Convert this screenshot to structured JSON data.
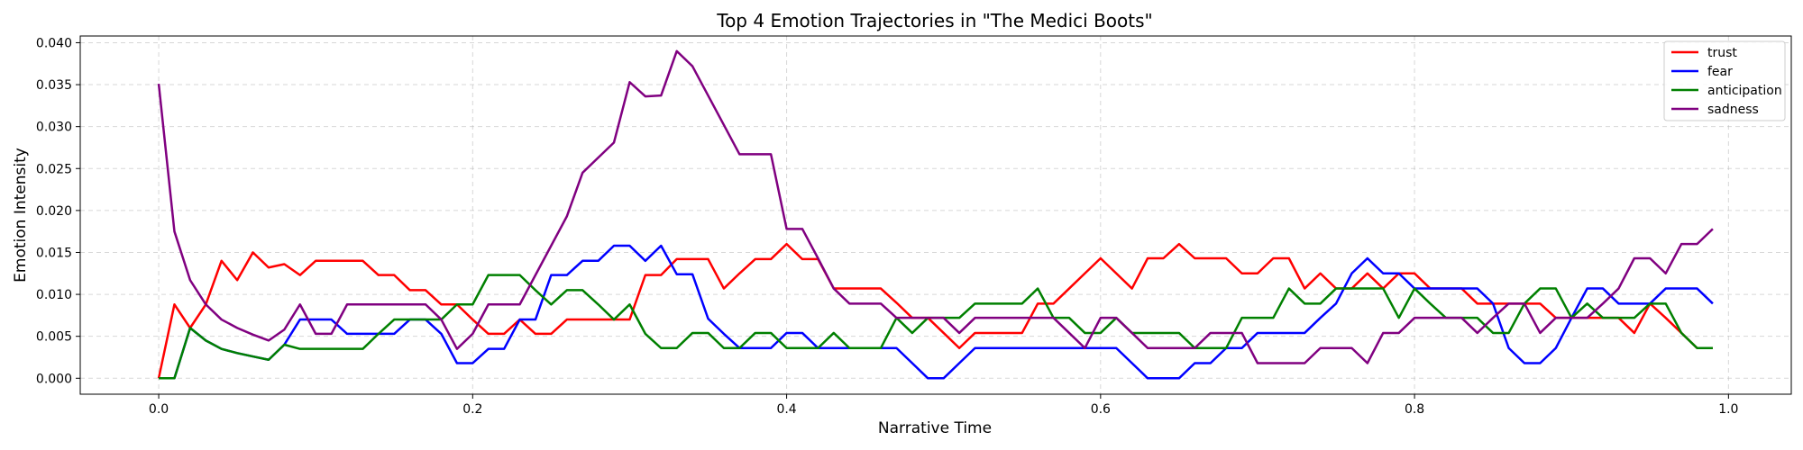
{
  "chart_data": {
    "type": "line",
    "title": "Top 4 Emotion Trajectories in \"The Medici Boots\"",
    "xlabel": "Narrative Time",
    "ylabel": "Emotion Intensity",
    "xlim": [
      -0.05,
      1.04
    ],
    "ylim": [
      -0.0019,
      0.0408
    ],
    "xticks": [
      "0.0",
      "0.2",
      "0.4",
      "0.6",
      "0.8",
      "1.0"
    ],
    "yticks": [
      "0.000",
      "0.005",
      "0.010",
      "0.015",
      "0.020",
      "0.025",
      "0.030",
      "0.035",
      "0.040"
    ],
    "grid": true,
    "legend_position": "top-right",
    "x": [
      0.0,
      0.01,
      0.02,
      0.03,
      0.04,
      0.05,
      0.06,
      0.07,
      0.08,
      0.09,
      0.1,
      0.11,
      0.12,
      0.13,
      0.14,
      0.15,
      0.16,
      0.17,
      0.18,
      0.19,
      0.2,
      0.21,
      0.22,
      0.23,
      0.24,
      0.25,
      0.26,
      0.27,
      0.28,
      0.29,
      0.3,
      0.31,
      0.32,
      0.33,
      0.34,
      0.35,
      0.36,
      0.37,
      0.38,
      0.39,
      0.4,
      0.41,
      0.42,
      0.43,
      0.44,
      0.45,
      0.46,
      0.47,
      0.48,
      0.49,
      0.5,
      0.51,
      0.52,
      0.53,
      0.54,
      0.55,
      0.56,
      0.57,
      0.58,
      0.59,
      0.6,
      0.61,
      0.62,
      0.63,
      0.64,
      0.65,
      0.66,
      0.67,
      0.68,
      0.69,
      0.7,
      0.71,
      0.72,
      0.73,
      0.74,
      0.75,
      0.76,
      0.77,
      0.78,
      0.79,
      0.8,
      0.81,
      0.82,
      0.83,
      0.84,
      0.85,
      0.86,
      0.87,
      0.88,
      0.89,
      0.9,
      0.91,
      0.92,
      0.93,
      0.94,
      0.95,
      0.96,
      0.97,
      0.98,
      0.99
    ],
    "series": [
      {
        "name": "trust",
        "color": "#ff0000",
        "values": [
          0.0,
          0.0088,
          0.006,
          0.0088,
          0.014,
          0.0117,
          0.015,
          0.0132,
          0.0136,
          0.0123,
          0.014,
          0.014,
          0.014,
          0.014,
          0.0123,
          0.0123,
          0.0105,
          0.0105,
          0.0088,
          0.0088,
          0.007,
          0.0053,
          0.0053,
          0.007,
          0.0053,
          0.0053,
          0.007,
          0.007,
          0.007,
          0.007,
          0.007,
          0.0123,
          0.0123,
          0.0142,
          0.0142,
          0.0142,
          0.0107,
          0.0125,
          0.0142,
          0.0142,
          0.016,
          0.0142,
          0.0142,
          0.0107,
          0.0107,
          0.0107,
          0.0107,
          0.009,
          0.0072,
          0.0072,
          0.0054,
          0.0036,
          0.0054,
          0.0054,
          0.0054,
          0.0054,
          0.0089,
          0.0089,
          0.0107,
          0.0125,
          0.0143,
          0.0125,
          0.0107,
          0.0143,
          0.0143,
          0.016,
          0.0143,
          0.0143,
          0.0143,
          0.0125,
          0.0125,
          0.0143,
          0.0143,
          0.0107,
          0.0125,
          0.0107,
          0.0107,
          0.0125,
          0.0107,
          0.0125,
          0.0125,
          0.0107,
          0.0107,
          0.0107,
          0.0089,
          0.0089,
          0.0089,
          0.0089,
          0.0089,
          0.0072,
          0.0072,
          0.0072,
          0.0072,
          0.0072,
          0.0054,
          0.0089,
          0.0072,
          0.0054,
          0.0036,
          0.0036
        ]
      },
      {
        "name": "fear",
        "color": "#0000ff",
        "values": [
          0.0,
          0.0,
          0.006,
          0.0045,
          0.0035,
          0.003,
          0.0026,
          0.0022,
          0.004,
          0.007,
          0.007,
          0.007,
          0.0053,
          0.0053,
          0.0053,
          0.0053,
          0.007,
          0.007,
          0.0053,
          0.0018,
          0.0018,
          0.0035,
          0.0035,
          0.007,
          0.007,
          0.0123,
          0.0123,
          0.014,
          0.014,
          0.0158,
          0.0158,
          0.014,
          0.0158,
          0.0124,
          0.0124,
          0.0071,
          0.0053,
          0.0036,
          0.0036,
          0.0036,
          0.0054,
          0.0054,
          0.0036,
          0.0036,
          0.0036,
          0.0036,
          0.0036,
          0.0036,
          0.0018,
          0.0,
          0.0,
          0.0018,
          0.0036,
          0.0036,
          0.0036,
          0.0036,
          0.0036,
          0.0036,
          0.0036,
          0.0036,
          0.0036,
          0.0036,
          0.0018,
          0.0,
          0.0,
          0.0,
          0.0018,
          0.0018,
          0.0036,
          0.0036,
          0.0054,
          0.0054,
          0.0054,
          0.0054,
          0.0072,
          0.0089,
          0.0125,
          0.0143,
          0.0125,
          0.0125,
          0.0107,
          0.0107,
          0.0107,
          0.0107,
          0.0107,
          0.0089,
          0.0036,
          0.0018,
          0.0018,
          0.0036,
          0.0072,
          0.0107,
          0.0107,
          0.0089,
          0.0089,
          0.0089,
          0.0107,
          0.0107,
          0.0107,
          0.0089
        ]
      },
      {
        "name": "anticipation",
        "color": "#008000",
        "values": [
          0.0,
          0.0,
          0.006,
          0.0045,
          0.0035,
          0.003,
          0.0026,
          0.0022,
          0.004,
          0.0035,
          0.0035,
          0.0035,
          0.0035,
          0.0035,
          0.0053,
          0.007,
          0.007,
          0.007,
          0.007,
          0.0088,
          0.0088,
          0.0123,
          0.0123,
          0.0123,
          0.0105,
          0.0088,
          0.0105,
          0.0105,
          0.0088,
          0.007,
          0.0088,
          0.0053,
          0.0036,
          0.0036,
          0.0054,
          0.0054,
          0.0036,
          0.0036,
          0.0054,
          0.0054,
          0.0036,
          0.0036,
          0.0036,
          0.0054,
          0.0036,
          0.0036,
          0.0036,
          0.0072,
          0.0054,
          0.0072,
          0.0072,
          0.0072,
          0.0089,
          0.0089,
          0.0089,
          0.0089,
          0.0107,
          0.0072,
          0.0072,
          0.0054,
          0.0054,
          0.0072,
          0.0054,
          0.0054,
          0.0054,
          0.0054,
          0.0036,
          0.0036,
          0.0036,
          0.0072,
          0.0072,
          0.0072,
          0.0107,
          0.0089,
          0.0089,
          0.0107,
          0.0107,
          0.0107,
          0.0107,
          0.0072,
          0.0107,
          0.0089,
          0.0072,
          0.0072,
          0.0072,
          0.0054,
          0.0054,
          0.0089,
          0.0107,
          0.0107,
          0.0072,
          0.0089,
          0.0072,
          0.0072,
          0.0072,
          0.0089,
          0.0089,
          0.0054,
          0.0036,
          0.0036
        ]
      },
      {
        "name": "sadness",
        "color": "#800080",
        "values": [
          0.0351,
          0.0175,
          0.0117,
          0.0088,
          0.007,
          0.006,
          0.0052,
          0.0045,
          0.0058,
          0.0088,
          0.0053,
          0.0053,
          0.0088,
          0.0088,
          0.0088,
          0.0088,
          0.0088,
          0.0088,
          0.007,
          0.0035,
          0.0053,
          0.0088,
          0.0088,
          0.0088,
          0.0123,
          0.0158,
          0.0193,
          0.0245,
          0.0263,
          0.0281,
          0.0353,
          0.0336,
          0.0337,
          0.039,
          0.0372,
          0.0337,
          0.0302,
          0.0267,
          0.0267,
          0.0267,
          0.0178,
          0.0178,
          0.0143,
          0.0107,
          0.0089,
          0.0089,
          0.0089,
          0.0072,
          0.0072,
          0.0072,
          0.0072,
          0.0054,
          0.0072,
          0.0072,
          0.0072,
          0.0072,
          0.0072,
          0.0072,
          0.0054,
          0.0036,
          0.0072,
          0.0072,
          0.0054,
          0.0036,
          0.0036,
          0.0036,
          0.0036,
          0.0054,
          0.0054,
          0.0054,
          0.0018,
          0.0018,
          0.0018,
          0.0018,
          0.0036,
          0.0036,
          0.0036,
          0.0018,
          0.0054,
          0.0054,
          0.0072,
          0.0072,
          0.0072,
          0.0072,
          0.0054,
          0.0072,
          0.0089,
          0.0089,
          0.0054,
          0.0072,
          0.0072,
          0.0072,
          0.0089,
          0.0107,
          0.0143,
          0.0143,
          0.0125,
          0.016,
          0.016,
          0.0178
        ]
      }
    ]
  }
}
